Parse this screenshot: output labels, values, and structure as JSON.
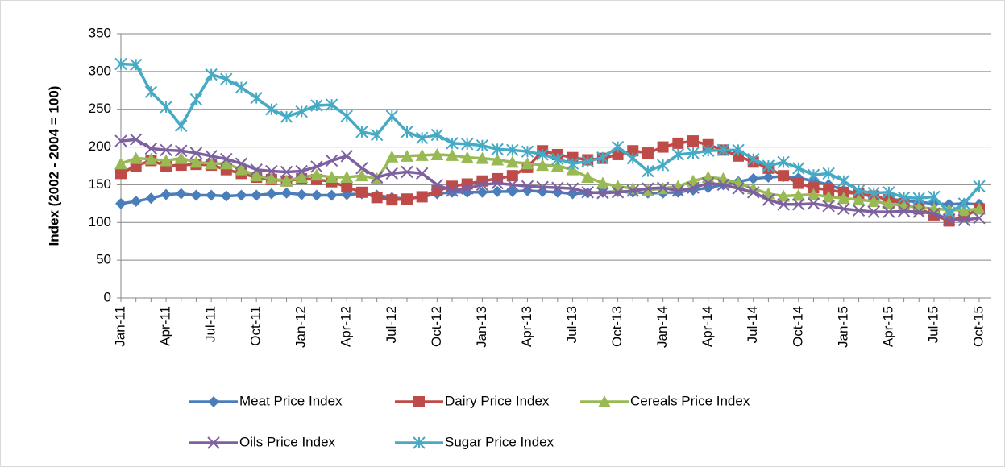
{
  "chart_data": {
    "type": "line",
    "y_label": "Index (2002 - 2004 = 100)",
    "categories": [
      "Jan-11",
      null,
      null,
      "Apr-11",
      null,
      null,
      "Jul-11",
      null,
      null,
      "Oct-11",
      null,
      null,
      "Jan-12",
      null,
      null,
      "Apr-12",
      null,
      null,
      "Jul-12",
      null,
      null,
      "Oct-12",
      null,
      null,
      "Jan-13",
      null,
      null,
      "Apr-13",
      null,
      null,
      "Jul-13",
      null,
      null,
      "Oct-13",
      null,
      null,
      "Jan-14",
      null,
      null,
      "Apr-14",
      null,
      null,
      "Jul-14",
      null,
      null,
      "Oct-14",
      null,
      null,
      "Jan-15",
      null,
      null,
      "Apr-15",
      null,
      null,
      "Jul-15",
      null,
      null,
      "Oct-15"
    ],
    "ylim": [
      0,
      350
    ],
    "yticks": [
      0,
      50,
      100,
      150,
      200,
      250,
      300,
      350
    ],
    "grid": true,
    "series": [
      {
        "name": "Meat Price Index",
        "color": "#4a7ebb",
        "marker": "diamond",
        "values": [
          125,
          128,
          132,
          137,
          138,
          136,
          136,
          135,
          136,
          136,
          138,
          139,
          137,
          136,
          136,
          137,
          138,
          136,
          133,
          131,
          134,
          138,
          140,
          140,
          140,
          141,
          141,
          142,
          141,
          140,
          138,
          139,
          140,
          141,
          140,
          139,
          139,
          140,
          143,
          146,
          150,
          154,
          158,
          160,
          161,
          159,
          155,
          150,
          143,
          138,
          134,
          131,
          129,
          127,
          125,
          124,
          125,
          124
        ]
      },
      {
        "name": "Dairy Price Index",
        "color": "#be4b48",
        "marker": "square",
        "values": [
          165,
          175,
          182,
          175,
          176,
          177,
          176,
          170,
          165,
          160,
          157,
          155,
          158,
          157,
          154,
          147,
          140,
          133,
          130,
          131,
          134,
          142,
          148,
          151,
          155,
          158,
          162,
          173,
          195,
          190,
          186,
          183,
          185,
          190,
          195,
          192,
          200,
          205,
          208,
          203,
          196,
          188,
          180,
          172,
          162,
          152,
          146,
          143,
          140,
          138,
          135,
          130,
          125,
          118,
          110,
          102,
          108,
          118
        ]
      },
      {
        "name": "Cereals Price Index",
        "color": "#98b954",
        "marker": "triangle",
        "values": [
          178,
          185,
          184,
          182,
          185,
          180,
          178,
          178,
          170,
          162,
          158,
          155,
          160,
          163,
          160,
          160,
          162,
          158,
          187,
          188,
          189,
          190,
          189,
          186,
          185,
          183,
          180,
          178,
          176,
          175,
          170,
          160,
          152,
          148,
          145,
          143,
          145,
          148,
          155,
          160,
          158,
          152,
          145,
          138,
          135,
          136,
          137,
          134,
          132,
          130,
          128,
          125,
          122,
          120,
          118,
          117,
          116,
          118
        ]
      },
      {
        "name": "Oils Price Index",
        "color": "#7d60a0",
        "marker": "x",
        "values": [
          208,
          210,
          198,
          196,
          195,
          192,
          188,
          184,
          178,
          170,
          168,
          167,
          168,
          174,
          182,
          188,
          172,
          160,
          165,
          167,
          165,
          150,
          142,
          145,
          150,
          152,
          150,
          148,
          147,
          146,
          145,
          140,
          139,
          140,
          142,
          145,
          146,
          142,
          146,
          152,
          150,
          145,
          140,
          130,
          124,
          124,
          125,
          122,
          118,
          116,
          114,
          114,
          115,
          114,
          112,
          104,
          103,
          106
        ]
      },
      {
        "name": "Sugar Price Index",
        "color": "#46aac5",
        "marker": "star",
        "values": [
          310,
          309,
          273,
          253,
          228,
          263,
          296,
          290,
          279,
          265,
          250,
          240,
          247,
          255,
          256,
          241,
          220,
          216,
          241,
          220,
          212,
          216,
          205,
          204,
          202,
          197,
          196,
          194,
          190,
          184,
          178,
          181,
          186,
          200,
          185,
          168,
          176,
          190,
          192,
          195,
          196,
          196,
          184,
          175,
          180,
          172,
          163,
          165,
          155,
          142,
          139,
          140,
          133,
          132,
          134,
          113,
          125,
          148
        ]
      }
    ]
  }
}
